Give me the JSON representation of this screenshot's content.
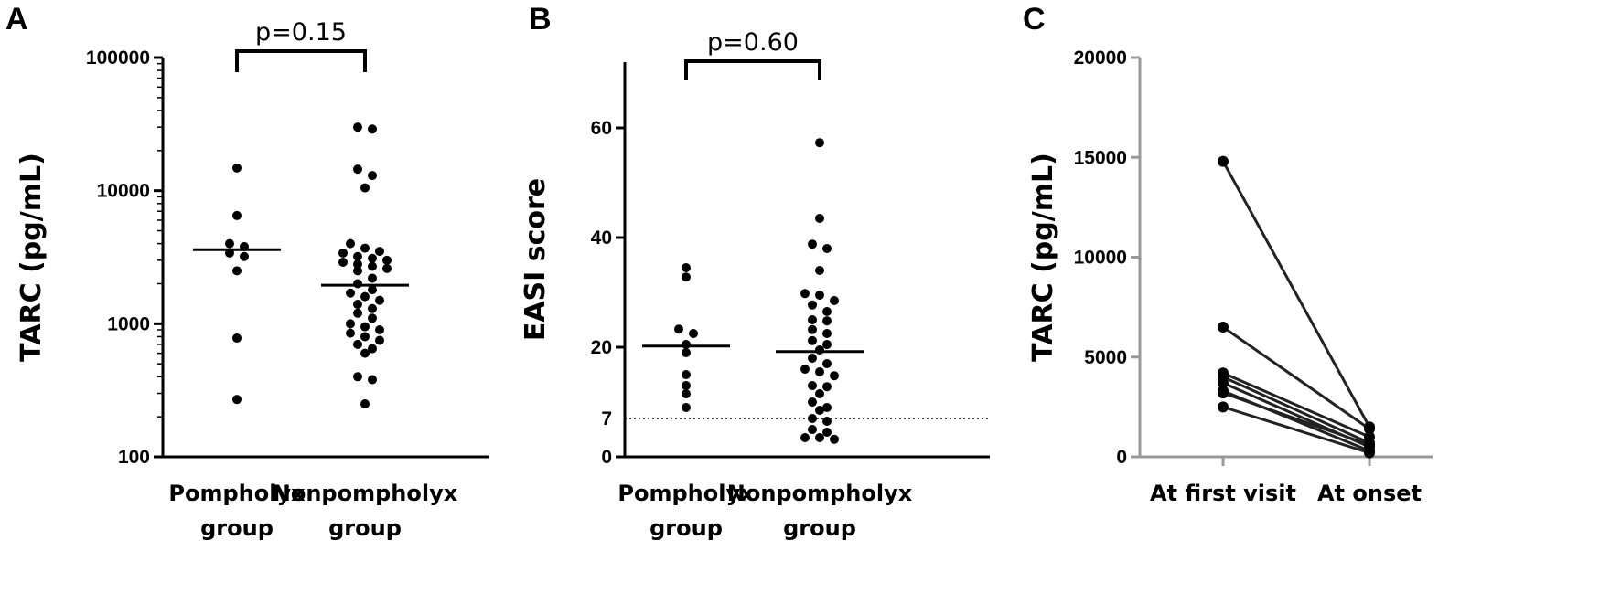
{
  "panels": [
    {
      "letter": "A"
    },
    {
      "letter": "B"
    },
    {
      "letter": "C"
    }
  ],
  "chart_data": [
    {
      "type": "scatter",
      "ylabel": "TARC (pg/mL)",
      "yscale": "log",
      "ylim": [
        100,
        100000
      ],
      "yticks": [
        "100",
        "1000",
        "10000",
        "100000"
      ],
      "categories": [
        [
          "Pompholyx",
          "group"
        ],
        [
          "Nonpompholyx",
          "group"
        ]
      ],
      "annotation": "p=0.15",
      "groups": [
        {
          "values": [
            14800,
            6500,
            4000,
            3800,
            3400,
            3200,
            2500,
            780,
            270
          ],
          "median": 3600
        },
        {
          "values": [
            30000,
            29000,
            14500,
            13000,
            10500,
            4000,
            3700,
            3500,
            3400,
            3200,
            3100,
            3000,
            2900,
            2800,
            2700,
            2600,
            2500,
            2200,
            2000,
            1800,
            1700,
            1600,
            1500,
            1400,
            1300,
            1200,
            1100,
            1000,
            950,
            900,
            850,
            800,
            750,
            700,
            650,
            600,
            400,
            380,
            250
          ],
          "median": 1950
        }
      ]
    },
    {
      "type": "scatter",
      "ylabel": "EASI score",
      "ylim": [
        0,
        72
      ],
      "yticks": [
        "0",
        "20",
        "40",
        "60"
      ],
      "reference_line": {
        "value": 7,
        "label": "7",
        "style": "dotted"
      },
      "categories": [
        [
          "Pompholyx",
          "group"
        ],
        [
          "Nonpompholyx",
          "group"
        ]
      ],
      "annotation": "p=0.60",
      "groups": [
        {
          "values": [
            34.5,
            32.8,
            23.3,
            22.5,
            20.5,
            19.0,
            15.0,
            13.0,
            11.5,
            9.0
          ],
          "median": 20.2
        },
        {
          "values": [
            57.3,
            43.5,
            38.8,
            38.0,
            34.0,
            29.8,
            29.5,
            28.5,
            27.7,
            26.5,
            25.0,
            24.8,
            23.2,
            22.5,
            21.2,
            20.5,
            19.5,
            18.0,
            17.0,
            16.0,
            15.5,
            14.8,
            13.0,
            12.8,
            11.5,
            10.0,
            9.0,
            8.5,
            7.0,
            6.5,
            5.0,
            4.5,
            3.5,
            3.5,
            3.2
          ],
          "median": 19.2
        }
      ]
    },
    {
      "type": "line",
      "ylabel": "TARC (pg/mL)",
      "ylim": [
        0,
        20000
      ],
      "yticks": [
        "0",
        "5000",
        "10000",
        "15000",
        "20000"
      ],
      "categories": [
        "At first visit",
        "At onset"
      ],
      "pairs": [
        [
          14800,
          1500
        ],
        [
          6500,
          1400
        ],
        [
          4200,
          1000
        ],
        [
          4000,
          700
        ],
        [
          3700,
          500
        ],
        [
          3300,
          300
        ],
        [
          3200,
          600
        ],
        [
          2500,
          200
        ]
      ]
    }
  ]
}
